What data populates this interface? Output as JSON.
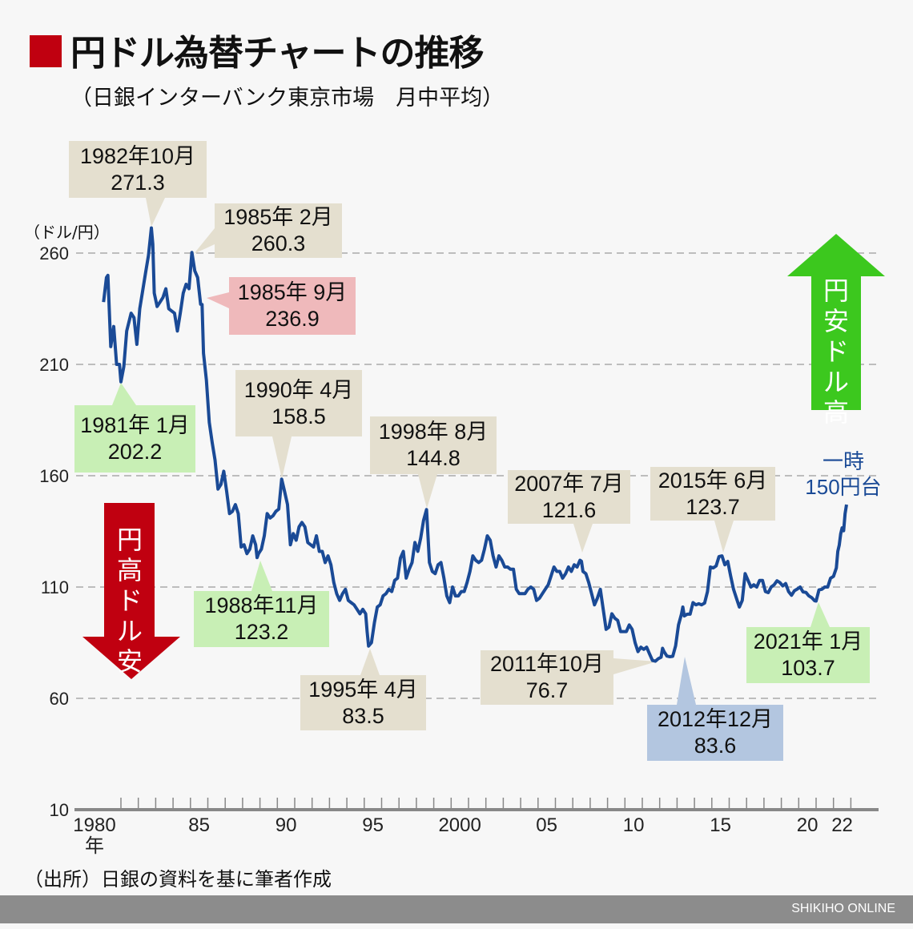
{
  "title": "円ドル為替チャートの推移",
  "subtitle": "（日銀インターバンク東京市場　月中平均）",
  "source": "（出所）日銀の資料を基に筆者作成",
  "footer": "SHIKIHO ONLINE",
  "colors": {
    "line": "#1a4a96",
    "title_mark": "#c00010",
    "up_arrow": "#3cc81e",
    "down_arrow": "#c00010",
    "note": "#1a4a96"
  },
  "arrows": {
    "up": {
      "label": "円安ドル高",
      "direction": "up"
    },
    "down": {
      "label": "円高ドル安",
      "direction": "down"
    }
  },
  "note": {
    "line1": "一時",
    "line2": "150円台"
  },
  "callouts": [
    {
      "date": "1982年10月",
      "value": "271.3",
      "style": "beige"
    },
    {
      "date": "1985年 2月",
      "value": "260.3",
      "style": "beige"
    },
    {
      "date": "1985年 9月",
      "value": "236.9",
      "style": "pink"
    },
    {
      "date": "1981年 1月",
      "value": "202.2",
      "style": "green"
    },
    {
      "date": "1990年 4月",
      "value": "158.5",
      "style": "beige"
    },
    {
      "date": "1998年 8月",
      "value": "144.8",
      "style": "beige"
    },
    {
      "date": "2007年 7月",
      "value": "121.6",
      "style": "beige"
    },
    {
      "date": "2015年 6月",
      "value": "123.7",
      "style": "beige"
    },
    {
      "date": "1988年11月",
      "value": "123.2",
      "style": "green"
    },
    {
      "date": "1995年 4月",
      "value": "83.5",
      "style": "beige"
    },
    {
      "date": "2011年10月",
      "value": "76.7",
      "style": "beige"
    },
    {
      "date": "2012年12月",
      "value": "83.6",
      "style": "blue"
    },
    {
      "date": "2021年 1月",
      "value": "103.7",
      "style": "green"
    }
  ],
  "chart_data": {
    "type": "line",
    "title": "円ドル為替チャートの推移",
    "ylabel": "（ドル/円）",
    "xlabel_suffix": "年",
    "ylim": [
      10,
      270
    ],
    "yticks": [
      10,
      60,
      110,
      160,
      210,
      260
    ],
    "xtick_labels": [
      "1980",
      "85",
      "90",
      "95",
      "2000",
      "05",
      "10",
      "15",
      "20",
      "22"
    ],
    "xtick_years": [
      1980,
      1985,
      1990,
      1995,
      2000,
      2005,
      2010,
      2015,
      2020,
      2022
    ],
    "grid": true,
    "series": [
      {
        "points": [
          [
            "1980-01",
            238
          ],
          [
            "1980-03",
            249
          ],
          [
            "1980-04",
            250
          ],
          [
            "1980-06",
            218
          ],
          [
            "1980-08",
            227
          ],
          [
            "1980-10",
            210
          ],
          [
            "1980-12",
            210
          ],
          [
            "1981-01",
            202.2
          ],
          [
            "1981-03",
            209
          ],
          [
            "1981-05",
            225
          ],
          [
            "1981-08",
            233
          ],
          [
            "1981-10",
            231
          ],
          [
            "1981-12",
            219
          ],
          [
            "1982-02",
            235
          ],
          [
            "1982-04",
            243
          ],
          [
            "1982-06",
            251
          ],
          [
            "1982-08",
            259
          ],
          [
            "1982-10",
            271.3
          ],
          [
            "1982-11",
            264
          ],
          [
            "1982-12",
            242
          ],
          [
            "1983-02",
            236
          ],
          [
            "1983-04",
            238
          ],
          [
            "1983-06",
            240
          ],
          [
            "1983-08",
            244
          ],
          [
            "1983-10",
            235
          ],
          [
            "1983-12",
            234
          ],
          [
            "1984-02",
            233
          ],
          [
            "1984-04",
            225
          ],
          [
            "1984-06",
            233
          ],
          [
            "1984-08",
            242
          ],
          [
            "1984-10",
            246
          ],
          [
            "1984-12",
            244
          ],
          [
            "1985-02",
            260.3
          ],
          [
            "1985-04",
            252
          ],
          [
            "1985-06",
            249
          ],
          [
            "1985-08",
            237
          ],
          [
            "1985-09",
            236.9
          ],
          [
            "1985-10",
            215
          ],
          [
            "1985-12",
            203
          ],
          [
            "1986-02",
            184
          ],
          [
            "1986-04",
            175
          ],
          [
            "1986-06",
            167
          ],
          [
            "1986-08",
            154
          ],
          [
            "1986-10",
            156
          ],
          [
            "1986-12",
            162
          ],
          [
            "1987-02",
            153
          ],
          [
            "1987-04",
            143
          ],
          [
            "1987-06",
            144
          ],
          [
            "1987-08",
            147
          ],
          [
            "1987-10",
            143
          ],
          [
            "1987-12",
            128
          ],
          [
            "1988-02",
            129
          ],
          [
            "1988-04",
            125
          ],
          [
            "1988-06",
            127
          ],
          [
            "1988-08",
            133
          ],
          [
            "1988-10",
            129
          ],
          [
            "1988-11",
            123.2
          ],
          [
            "1988-12",
            125
          ],
          [
            "1989-02",
            127
          ],
          [
            "1989-04",
            133
          ],
          [
            "1989-06",
            143
          ],
          [
            "1989-08",
            141
          ],
          [
            "1989-10",
            142
          ],
          [
            "1989-12",
            144
          ],
          [
            "1990-02",
            145
          ],
          [
            "1990-04",
            158.5
          ],
          [
            "1990-06",
            153
          ],
          [
            "1990-08",
            147
          ],
          [
            "1990-10",
            129
          ],
          [
            "1990-12",
            134
          ],
          [
            "1991-02",
            131
          ],
          [
            "1991-04",
            137
          ],
          [
            "1991-06",
            139
          ],
          [
            "1991-08",
            137
          ],
          [
            "1991-10",
            130
          ],
          [
            "1991-12",
            129
          ],
          [
            "1992-02",
            128
          ],
          [
            "1992-04",
            133
          ],
          [
            "1992-06",
            126
          ],
          [
            "1992-08",
            126
          ],
          [
            "1992-10",
            121
          ],
          [
            "1992-12",
            124
          ],
          [
            "1993-02",
            120
          ],
          [
            "1993-04",
            112
          ],
          [
            "1993-06",
            107
          ],
          [
            "1993-08",
            104
          ],
          [
            "1993-10",
            107
          ],
          [
            "1993-12",
            109
          ],
          [
            "1994-02",
            104
          ],
          [
            "1994-04",
            103
          ],
          [
            "1994-06",
            102
          ],
          [
            "1994-08",
            100
          ],
          [
            "1994-10",
            98
          ],
          [
            "1994-12",
            100
          ],
          [
            "1995-02",
            98
          ],
          [
            "1995-03",
            90
          ],
          [
            "1995-04",
            83.5
          ],
          [
            "1995-06",
            85
          ],
          [
            "1995-08",
            94
          ],
          [
            "1995-10",
            101
          ],
          [
            "1995-12",
            102
          ],
          [
            "1996-02",
            106
          ],
          [
            "1996-04",
            107
          ],
          [
            "1996-06",
            109
          ],
          [
            "1996-08",
            108
          ],
          [
            "1996-10",
            113
          ],
          [
            "1996-12",
            114
          ],
          [
            "1997-02",
            123
          ],
          [
            "1997-04",
            126
          ],
          [
            "1997-06",
            114
          ],
          [
            "1997-08",
            118
          ],
          [
            "1997-10",
            121
          ],
          [
            "1997-12",
            130
          ],
          [
            "1998-02",
            126
          ],
          [
            "1998-04",
            132
          ],
          [
            "1998-06",
            140
          ],
          [
            "1998-08",
            144.8
          ],
          [
            "1998-10",
            121
          ],
          [
            "1998-12",
            117
          ],
          [
            "1999-02",
            116
          ],
          [
            "1999-04",
            120
          ],
          [
            "1999-06",
            121
          ],
          [
            "1999-08",
            114
          ],
          [
            "1999-10",
            106
          ],
          [
            "1999-12",
            103
          ],
          [
            "2000-02",
            110
          ],
          [
            "2000-04",
            106
          ],
          [
            "2000-06",
            106
          ],
          [
            "2000-08",
            108
          ],
          [
            "2000-10",
            108
          ],
          [
            "2000-12",
            112
          ],
          [
            "2001-02",
            117
          ],
          [
            "2001-04",
            124
          ],
          [
            "2001-06",
            122
          ],
          [
            "2001-08",
            121
          ],
          [
            "2001-10",
            122
          ],
          [
            "2001-12",
            127
          ],
          [
            "2002-02",
            133
          ],
          [
            "2002-04",
            131
          ],
          [
            "2002-06",
            124
          ],
          [
            "2002-08",
            119
          ],
          [
            "2002-10",
            124
          ],
          [
            "2002-12",
            122
          ],
          [
            "2003-02",
            119
          ],
          [
            "2003-04",
            119
          ],
          [
            "2003-06",
            118
          ],
          [
            "2003-08",
            118
          ],
          [
            "2003-10",
            109
          ],
          [
            "2003-12",
            107
          ],
          [
            "2004-02",
            107
          ],
          [
            "2004-04",
            107
          ],
          [
            "2004-06",
            109
          ],
          [
            "2004-08",
            110
          ],
          [
            "2004-10",
            109
          ],
          [
            "2004-12",
            104
          ],
          [
            "2005-02",
            105
          ],
          [
            "2005-04",
            107
          ],
          [
            "2005-06",
            109
          ],
          [
            "2005-08",
            111
          ],
          [
            "2005-10",
            115
          ],
          [
            "2005-12",
            119
          ],
          [
            "2006-02",
            117
          ],
          [
            "2006-04",
            117
          ],
          [
            "2006-06",
            114
          ],
          [
            "2006-08",
            116
          ],
          [
            "2006-10",
            119
          ],
          [
            "2006-12",
            117
          ],
          [
            "2007-02",
            120
          ],
          [
            "2007-04",
            119
          ],
          [
            "2007-06",
            122
          ],
          [
            "2007-07",
            121.6
          ],
          [
            "2007-08",
            117
          ],
          [
            "2007-10",
            116
          ],
          [
            "2007-12",
            112
          ],
          [
            "2008-02",
            107
          ],
          [
            "2008-04",
            102
          ],
          [
            "2008-06",
            105
          ],
          [
            "2008-08",
            109
          ],
          [
            "2008-10",
            100
          ],
          [
            "2008-12",
            91
          ],
          [
            "2009-02",
            92
          ],
          [
            "2009-04",
            98
          ],
          [
            "2009-06",
            96
          ],
          [
            "2009-08",
            95
          ],
          [
            "2009-10",
            90
          ],
          [
            "2009-12",
            90
          ],
          [
            "2010-02",
            90
          ],
          [
            "2010-04",
            93
          ],
          [
            "2010-06",
            91
          ],
          [
            "2010-08",
            85
          ],
          [
            "2010-10",
            81
          ],
          [
            "2010-12",
            83
          ],
          [
            "2011-02",
            82
          ],
          [
            "2011-04",
            83
          ],
          [
            "2011-06",
            80
          ],
          [
            "2011-08",
            77
          ],
          [
            "2011-10",
            76.7
          ],
          [
            "2011-12",
            77.8
          ],
          [
            "2012-02",
            78.5
          ],
          [
            "2012-03",
            82.5
          ],
          [
            "2012-04",
            81
          ],
          [
            "2012-06",
            79
          ],
          [
            "2012-08",
            78.7
          ],
          [
            "2012-10",
            78.9
          ],
          [
            "2012-12",
            83.6
          ],
          [
            "2013-02",
            93
          ],
          [
            "2013-04",
            97.7
          ],
          [
            "2013-05",
            101
          ],
          [
            "2013-06",
            97
          ],
          [
            "2013-08",
            97.8
          ],
          [
            "2013-10",
            97.8
          ],
          [
            "2013-12",
            103
          ],
          [
            "2014-02",
            102
          ],
          [
            "2014-04",
            102.5
          ],
          [
            "2014-06",
            102
          ],
          [
            "2014-08",
            102.8
          ],
          [
            "2014-10",
            108
          ],
          [
            "2014-12",
            119
          ],
          [
            "2015-02",
            118.6
          ],
          [
            "2015-04",
            119.5
          ],
          [
            "2015-06",
            123.7
          ],
          [
            "2015-08",
            124
          ],
          [
            "2015-10",
            120
          ],
          [
            "2015-12",
            121.5
          ],
          [
            "2016-02",
            115
          ],
          [
            "2016-04",
            109
          ],
          [
            "2016-06",
            105
          ],
          [
            "2016-08",
            101
          ],
          [
            "2016-10",
            104
          ],
          [
            "2016-12",
            116
          ],
          [
            "2017-02",
            113
          ],
          [
            "2017-04",
            110
          ],
          [
            "2017-06",
            111
          ],
          [
            "2017-08",
            110
          ],
          [
            "2017-10",
            113
          ],
          [
            "2017-12",
            113
          ],
          [
            "2018-02",
            108
          ],
          [
            "2018-04",
            107.5
          ],
          [
            "2018-06",
            110
          ],
          [
            "2018-08",
            111
          ],
          [
            "2018-10",
            112.8
          ],
          [
            "2018-12",
            112
          ],
          [
            "2019-02",
            110.5
          ],
          [
            "2019-04",
            111.6
          ],
          [
            "2019-06",
            108
          ],
          [
            "2019-08",
            106.3
          ],
          [
            "2019-10",
            108.3
          ],
          [
            "2019-12",
            109.1
          ],
          [
            "2020-02",
            110
          ],
          [
            "2020-04",
            107.8
          ],
          [
            "2020-06",
            107.6
          ],
          [
            "2020-08",
            106
          ],
          [
            "2020-10",
            105.2
          ],
          [
            "2020-12",
            103.8
          ],
          [
            "2021-01",
            103.7
          ],
          [
            "2021-03",
            108.7
          ],
          [
            "2021-05",
            109
          ],
          [
            "2021-07",
            110
          ],
          [
            "2021-09",
            110
          ],
          [
            "2021-11",
            114
          ],
          [
            "2022-01",
            114.8
          ],
          [
            "2022-03",
            118.6
          ],
          [
            "2022-04",
            126
          ],
          [
            "2022-05",
            128.8
          ],
          [
            "2022-06",
            133.9
          ],
          [
            "2022-07",
            136.6
          ],
          [
            "2022-08",
            135.3
          ],
          [
            "2022-09",
            143
          ],
          [
            "2022-10",
            147
          ]
        ]
      }
    ]
  }
}
